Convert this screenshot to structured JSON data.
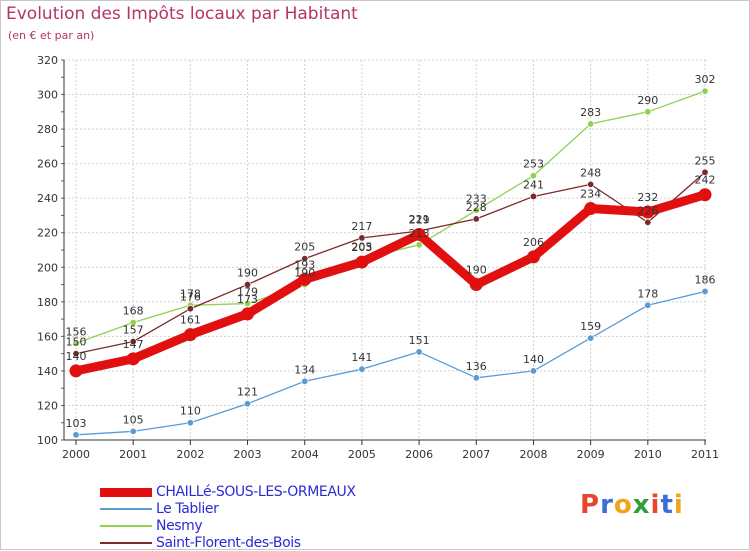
{
  "title": "Evolution des Impôts locaux par Habitant",
  "subtitle": "(en € et par an)",
  "logo_text": "Proxiti",
  "colors": {
    "title": "#b5336b",
    "legend_text": "#2b2bd6",
    "grid": "#d0d0d0"
  },
  "chart_data": {
    "type": "line",
    "x": [
      "2000",
      "2001",
      "2002",
      "2003",
      "2004",
      "2005",
      "2006",
      "2007",
      "2008",
      "2009",
      "2010",
      "2011"
    ],
    "ylim": [
      100,
      320
    ],
    "yticks": [
      100,
      120,
      140,
      160,
      180,
      200,
      220,
      240,
      260,
      280,
      300,
      320
    ],
    "grid": true,
    "legend_position": "bottom",
    "series": [
      {
        "name": "CHAILLé-SOUS-LES-ORMEAUX",
        "color": "#e01010",
        "values": [
          140,
          147,
          161,
          173,
          193,
          203,
          219,
          190,
          206,
          234,
          232,
          242
        ]
      },
      {
        "name": "Le Tablier",
        "color": "#5b9bd5",
        "values": [
          103,
          105,
          110,
          121,
          134,
          141,
          151,
          136,
          140,
          159,
          178,
          186
        ]
      },
      {
        "name": "Nesmy",
        "color": "#8ed24f",
        "values": [
          156,
          168,
          178,
          179,
          190,
          205,
          213,
          233,
          253,
          283,
          290,
          302
        ]
      },
      {
        "name": "Saint-Florent-des-Bois",
        "color": "#7a2a2a",
        "values": [
          150,
          157,
          176,
          190,
          205,
          217,
          221,
          228,
          241,
          248,
          226,
          255
        ]
      }
    ]
  }
}
